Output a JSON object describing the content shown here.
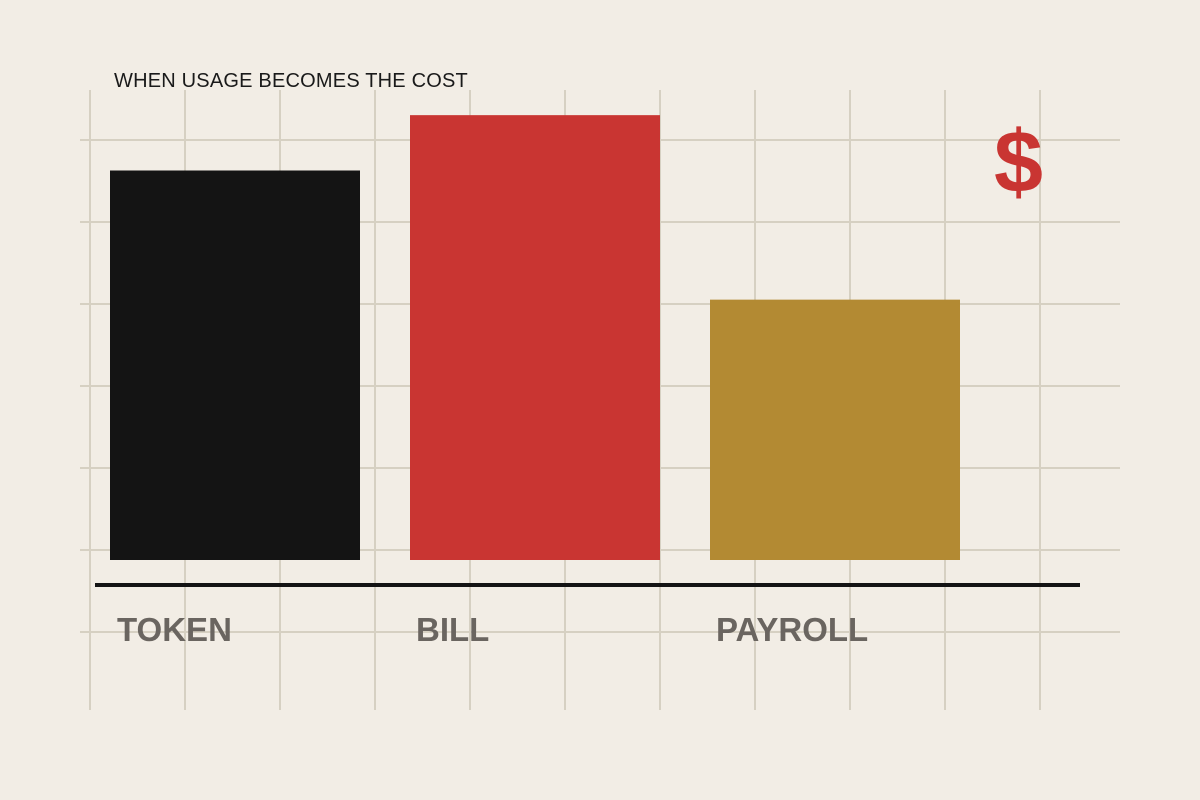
{
  "chart_data": {
    "type": "bar",
    "title": "WHEN USAGE BECOMES THE COST",
    "categories": [
      "TOKEN",
      "BILL",
      "PAYROLL"
    ],
    "values": [
      95,
      108.5,
      63.5
    ],
    "colors": [
      "#141414",
      "#c93532",
      "#b38a33"
    ],
    "ylim": [
      0,
      120
    ],
    "grid": true,
    "xlabel": "",
    "ylabel": ""
  },
  "decor": {
    "icon": "dollar-icon",
    "icon_glyph": "$",
    "icon_color": "#c93532",
    "background": "#f2ede5",
    "grid_color": "#d6d0c2",
    "baseline_color": "#141414"
  }
}
